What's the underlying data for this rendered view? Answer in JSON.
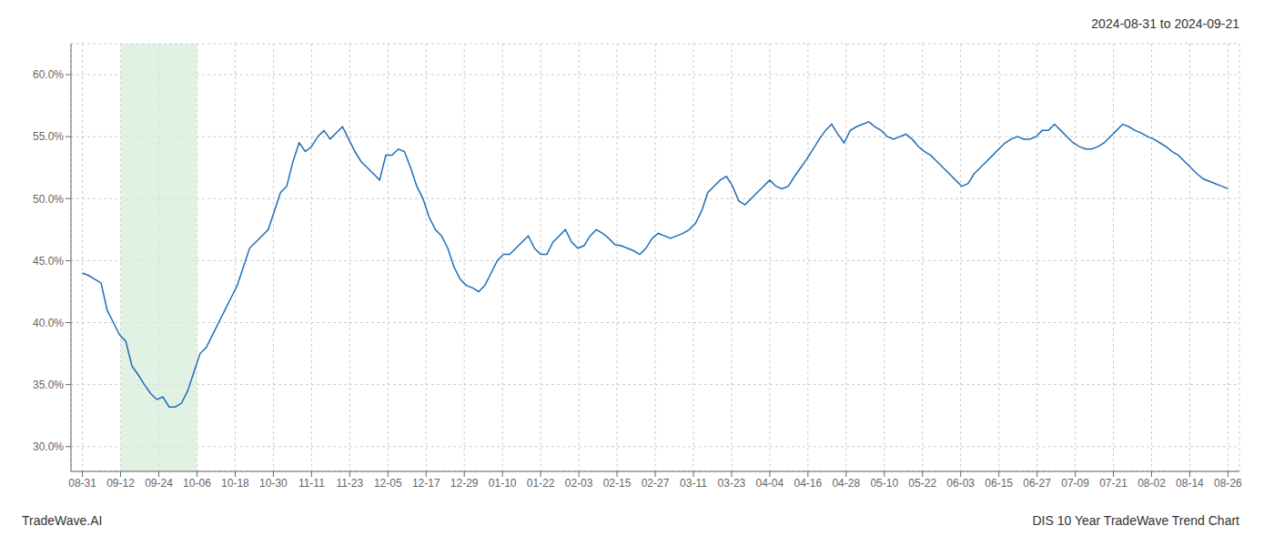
{
  "chart_data": {
    "type": "line",
    "annotations": [
      "2024-08-31 to 2024-09-21",
      "TradeWave.AI",
      "DIS 10 Year TradeWave Trend Chart"
    ],
    "color": "#1f6eb5",
    "grid": true,
    "highlight_region": {
      "x": [
        1,
        3
      ],
      "color": "#d4edda"
    },
    "xlim": [
      -0.3,
      30.3
    ],
    "xticks": [
      {
        "value": 0,
        "label": "08-31"
      },
      {
        "value": 1,
        "label": "09-12"
      },
      {
        "value": 2,
        "label": "09-24"
      },
      {
        "value": 3,
        "label": "10-06"
      },
      {
        "value": 4,
        "label": "10-18"
      },
      {
        "value": 5,
        "label": "10-30"
      },
      {
        "value": 6,
        "label": "11-11"
      },
      {
        "value": 7,
        "label": "11-23"
      },
      {
        "value": 8,
        "label": "12-05"
      },
      {
        "value": 9,
        "label": "12-17"
      },
      {
        "value": 10,
        "label": "12-29"
      },
      {
        "value": 11,
        "label": "01-10"
      },
      {
        "value": 12,
        "label": "01-22"
      },
      {
        "value": 13,
        "label": "02-03"
      },
      {
        "value": 14,
        "label": "02-15"
      },
      {
        "value": 15,
        "label": "02-27"
      },
      {
        "value": 16,
        "label": "03-11"
      },
      {
        "value": 17,
        "label": "03-23"
      },
      {
        "value": 18,
        "label": "04-04"
      },
      {
        "value": 19,
        "label": "04-16"
      },
      {
        "value": 20,
        "label": "04-28"
      },
      {
        "value": 21,
        "label": "05-10"
      },
      {
        "value": 22,
        "label": "05-22"
      },
      {
        "value": 23,
        "label": "06-03"
      },
      {
        "value": 24,
        "label": "06-15"
      },
      {
        "value": 25,
        "label": "06-27"
      },
      {
        "value": 26,
        "label": "07-09"
      },
      {
        "value": 27,
        "label": "07-21"
      },
      {
        "value": 28,
        "label": "08-02"
      },
      {
        "value": 29,
        "label": "08-14"
      },
      {
        "value": 30,
        "label": "08-26"
      }
    ],
    "ylim": [
      0.28,
      0.625
    ],
    "yticks": [
      {
        "value": 0.3,
        "label": "30.0%"
      },
      {
        "value": 0.35,
        "label": "35.0%"
      },
      {
        "value": 0.4,
        "label": "40.0%"
      },
      {
        "value": 0.45,
        "label": "45.0%"
      },
      {
        "value": 0.5,
        "label": "50.0%"
      },
      {
        "value": 0.55,
        "label": "55.0%"
      },
      {
        "value": 0.6,
        "label": "60.0%"
      }
    ],
    "x": [
      0,
      0.1622,
      0.3243,
      0.4865,
      0.6486,
      0.8108,
      0.973,
      1.1351,
      1.2973,
      1.4595,
      1.6216,
      1.7838,
      1.9459,
      2.1081,
      2.2703,
      2.4324,
      2.5946,
      2.7568,
      2.9189,
      3.0811,
      3.2432,
      3.4054,
      3.5676,
      3.7297,
      3.8919,
      4.0541,
      4.2162,
      4.3784,
      4.5405,
      4.7027,
      4.8649,
      5.027,
      5.1892,
      5.3514,
      5.5135,
      5.6757,
      5.8378,
      6,
      6.1622,
      6.3243,
      6.4865,
      6.6486,
      6.8108,
      6.973,
      7.1351,
      7.2973,
      7.4595,
      7.6216,
      7.7838,
      7.9459,
      8.1081,
      8.2703,
      8.4324,
      8.5946,
      8.7568,
      8.9189,
      9.0811,
      9.2432,
      9.4054,
      9.5676,
      9.7297,
      9.8919,
      10.0541,
      10.2162,
      10.3784,
      10.5405,
      10.7027,
      10.8649,
      11.027,
      11.1892,
      11.3514,
      11.5135,
      11.6757,
      11.8378,
      12,
      12.1622,
      12.3243,
      12.4865,
      12.6486,
      12.8108,
      12.973,
      13.1351,
      13.2973,
      13.4595,
      13.6216,
      13.7838,
      13.9459,
      14.1081,
      14.2703,
      14.4324,
      14.5946,
      14.7568,
      14.9189,
      15.0811,
      15.2432,
      15.4054,
      15.5676,
      15.7297,
      15.8919,
      16.0541,
      16.2162,
      16.3784,
      16.5405,
      16.7027,
      16.8649,
      17.027,
      17.1892,
      17.3514,
      17.5135,
      17.6757,
      17.8378,
      18,
      18.1622,
      18.3243,
      18.4865,
      18.6486,
      18.8108,
      18.973,
      19.1351,
      19.2973,
      19.4595,
      19.6216,
      19.7838,
      19.9459,
      20.1081,
      20.2703,
      20.4324,
      20.5946,
      20.7568,
      20.9189,
      21.0811,
      21.2432,
      21.4054,
      21.5676,
      21.7297,
      21.8919,
      22.0541,
      22.2162,
      22.3784,
      22.5405,
      22.7027,
      22.8649,
      23.027,
      23.1892,
      23.3514,
      23.5135,
      23.6757,
      23.8378,
      24,
      24.1622,
      24.3243,
      24.4865,
      24.6486,
      24.8108,
      24.973,
      25.1351,
      25.2973,
      25.4595,
      25.6216,
      25.7838,
      25.9459,
      26.1081,
      26.2703,
      26.4324,
      26.5946,
      26.7568,
      26.9189,
      27.0811,
      27.2432,
      27.4054,
      27.5676,
      27.7297,
      27.8919,
      28.0541,
      28.2162,
      28.3784,
      28.5405,
      28.7027,
      28.8649,
      29.027,
      29.1892,
      29.3514,
      29.5135,
      29.6757,
      29.8378,
      30
    ],
    "values": [
      0.44,
      0.438,
      0.435,
      0.432,
      0.41,
      0.4,
      0.39,
      0.385,
      0.365,
      0.358,
      0.35,
      0.343,
      0.338,
      0.34,
      0.332,
      0.332,
      0.335,
      0.345,
      0.36,
      0.375,
      0.38,
      0.39,
      0.4,
      0.41,
      0.42,
      0.43,
      0.445,
      0.46,
      0.465,
      0.47,
      0.475,
      0.49,
      0.505,
      0.51,
      0.53,
      0.545,
      0.538,
      0.542,
      0.55,
      0.555,
      0.548,
      0.553,
      0.558,
      0.548,
      0.538,
      0.53,
      0.525,
      0.52,
      0.515,
      0.535,
      0.535,
      0.54,
      0.538,
      0.525,
      0.51,
      0.5,
      0.485,
      0.475,
      0.47,
      0.46,
      0.445,
      0.435,
      0.43,
      0.428,
      0.425,
      0.43,
      0.44,
      0.45,
      0.455,
      0.455,
      0.46,
      0.465,
      0.47,
      0.46,
      0.455,
      0.455,
      0.465,
      0.47,
      0.475,
      0.465,
      0.46,
      0.462,
      0.47,
      0.475,
      0.472,
      0.468,
      0.463,
      0.462,
      0.46,
      0.458,
      0.455,
      0.46,
      0.468,
      0.472,
      0.47,
      0.468,
      0.47,
      0.472,
      0.475,
      0.48,
      0.49,
      0.505,
      0.51,
      0.515,
      0.518,
      0.51,
      0.498,
      0.495,
      0.5,
      0.505,
      0.51,
      0.515,
      0.51,
      0.508,
      0.51,
      0.518,
      0.525,
      0.532,
      0.54,
      0.548,
      0.555,
      0.56,
      0.552,
      0.545,
      0.555,
      0.558,
      0.56,
      0.562,
      0.558,
      0.555,
      0.55,
      0.548,
      0.55,
      0.552,
      0.548,
      0.542,
      0.538,
      0.535,
      0.53,
      0.525,
      0.52,
      0.515,
      0.51,
      0.512,
      0.52,
      0.525,
      0.53,
      0.535,
      0.54,
      0.545,
      0.548,
      0.55,
      0.548,
      0.548,
      0.55,
      0.555,
      0.555,
      0.56,
      0.555,
      0.55,
      0.545,
      0.542,
      0.54,
      0.54,
      0.542,
      0.545,
      0.55,
      0.555,
      0.56,
      0.558,
      0.555,
      0.553,
      0.55,
      0.548,
      0.545,
      0.542,
      0.538,
      0.535,
      0.53,
      0.525,
      0.52,
      0.516,
      0.514,
      0.512,
      0.51,
      0.508
    ]
  }
}
